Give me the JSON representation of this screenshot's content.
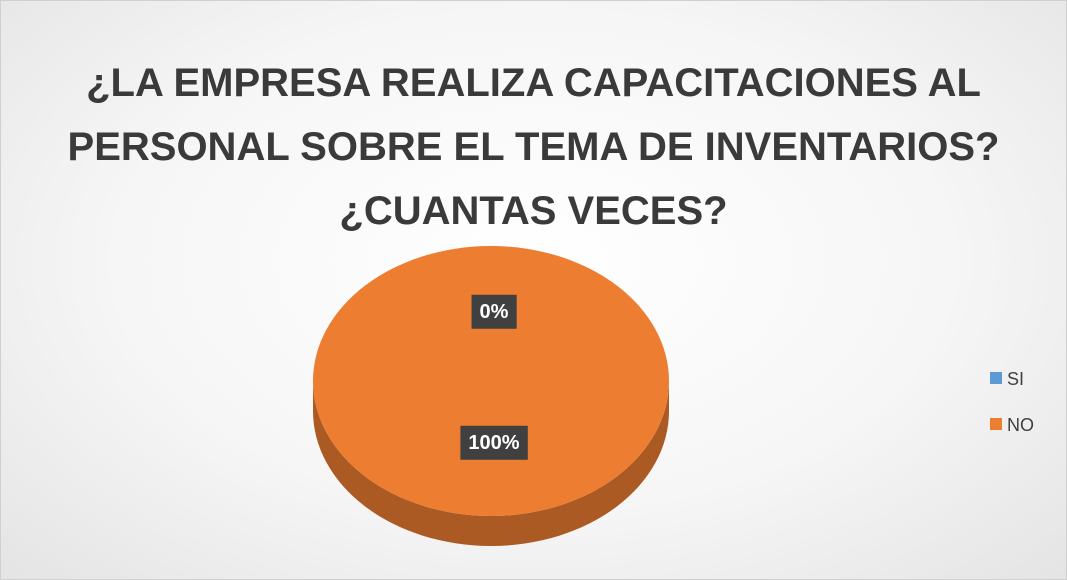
{
  "chart_data": {
    "type": "pie",
    "title": "¿LA EMPRESA REALIZA CAPACITACIONES AL PERSONAL SOBRE EL TEMA DE INVENTARIOS? ¿CUANTAS VECES?",
    "categories": [
      "SI",
      "NO"
    ],
    "values": [
      0,
      100
    ],
    "value_labels": [
      "0%",
      "100%"
    ],
    "colors": [
      "#5b9bd5",
      "#ed7d31"
    ],
    "legend": "right"
  }
}
